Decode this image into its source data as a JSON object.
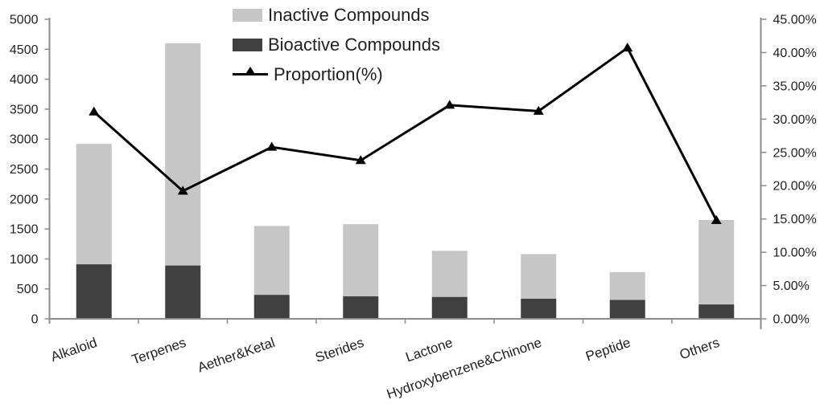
{
  "legend": {
    "position": "top-center",
    "items": [
      {
        "label": "Inactive Compounds",
        "swatch": "rect",
        "color": "#c6c6c6"
      },
      {
        "label": "Bioactive Compounds",
        "swatch": "rect",
        "color": "#404040"
      },
      {
        "label": "Proportion(%)",
        "swatch": "line-triangle-marker",
        "color": "#000000"
      }
    ]
  },
  "chart_data": {
    "type": "bar",
    "subtype": "stacked-bars-with-line-overlay",
    "title": "",
    "xlabel": "",
    "ylabel_left": "",
    "ylabel_right": "",
    "grid": false,
    "categories": [
      "Alkaloid",
      "Terpenes",
      "Aether&Ketal",
      "Sterides",
      "Lactone",
      "Hydroxybenzene&Chinone",
      "Peptide",
      "Others"
    ],
    "series": [
      {
        "name": "Bioactive Compounds",
        "kind": "bar",
        "stack": "base",
        "axis": "left",
        "color": "#404040",
        "values": [
          910,
          890,
          400,
          375,
          365,
          335,
          315,
          240
        ]
      },
      {
        "name": "Inactive Compounds",
        "kind": "bar",
        "stack": "top",
        "axis": "left",
        "color": "#c6c6c6",
        "values": [
          2010,
          3710,
          1150,
          1205,
          770,
          745,
          465,
          1410
        ]
      },
      {
        "name": "Proportion(%)",
        "kind": "line",
        "axis": "right",
        "color": "#000000",
        "marker": "filled-triangle-up",
        "values": [
          31.1,
          19.2,
          25.8,
          23.8,
          32.1,
          31.2,
          40.7,
          14.8
        ]
      }
    ],
    "stack_totals": [
      2920,
      4600,
      1550,
      1580,
      1135,
      1080,
      780,
      1650
    ],
    "left_axis": {
      "min": 0,
      "max": 5000,
      "step": 500,
      "tick_labels": [
        "0",
        "500",
        "1000",
        "1500",
        "2000",
        "2500",
        "3000",
        "3500",
        "4000",
        "4500",
        "5000"
      ]
    },
    "right_axis": {
      "min": 0,
      "max": 45,
      "step": 5,
      "tick_labels": [
        "0.00%",
        "5.00%",
        "10.00%",
        "15.00%",
        "20.00%",
        "25.00%",
        "30.00%",
        "35.00%",
        "40.00%",
        "45.00%"
      ]
    },
    "x_axis": {
      "label_rotation_deg": -19
    },
    "colors": {
      "axis_line": "#8c8c8c",
      "tick_text": "#1f1f1f",
      "background": "#ffffff"
    }
  }
}
